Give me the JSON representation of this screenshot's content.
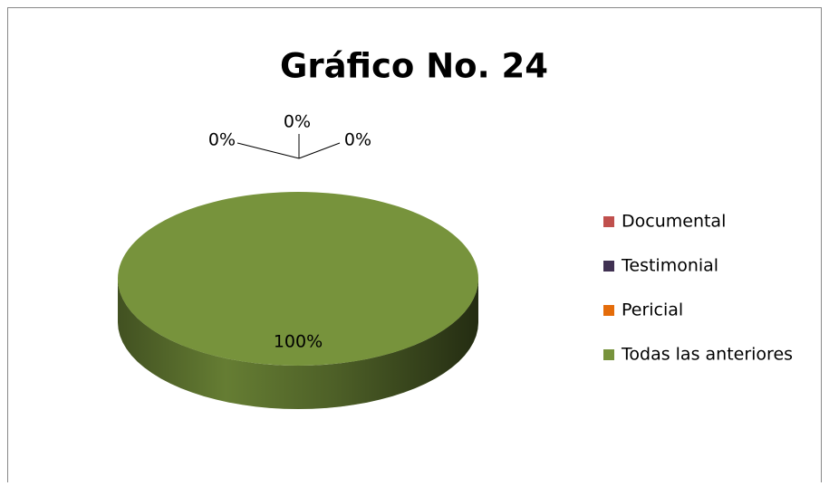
{
  "chart_data": {
    "type": "pie",
    "title": "Gráfico No. 24",
    "categories": [
      "Documental",
      "Testimonial",
      "Pericial",
      "Todas las anteriores"
    ],
    "values": [
      0,
      0,
      0,
      100
    ],
    "value_labels": [
      "0%",
      "0%",
      "0%",
      "100%"
    ],
    "colors": [
      "#c0504d",
      "#403152",
      "#e46c0a",
      "#77933c"
    ],
    "legend": "right"
  }
}
